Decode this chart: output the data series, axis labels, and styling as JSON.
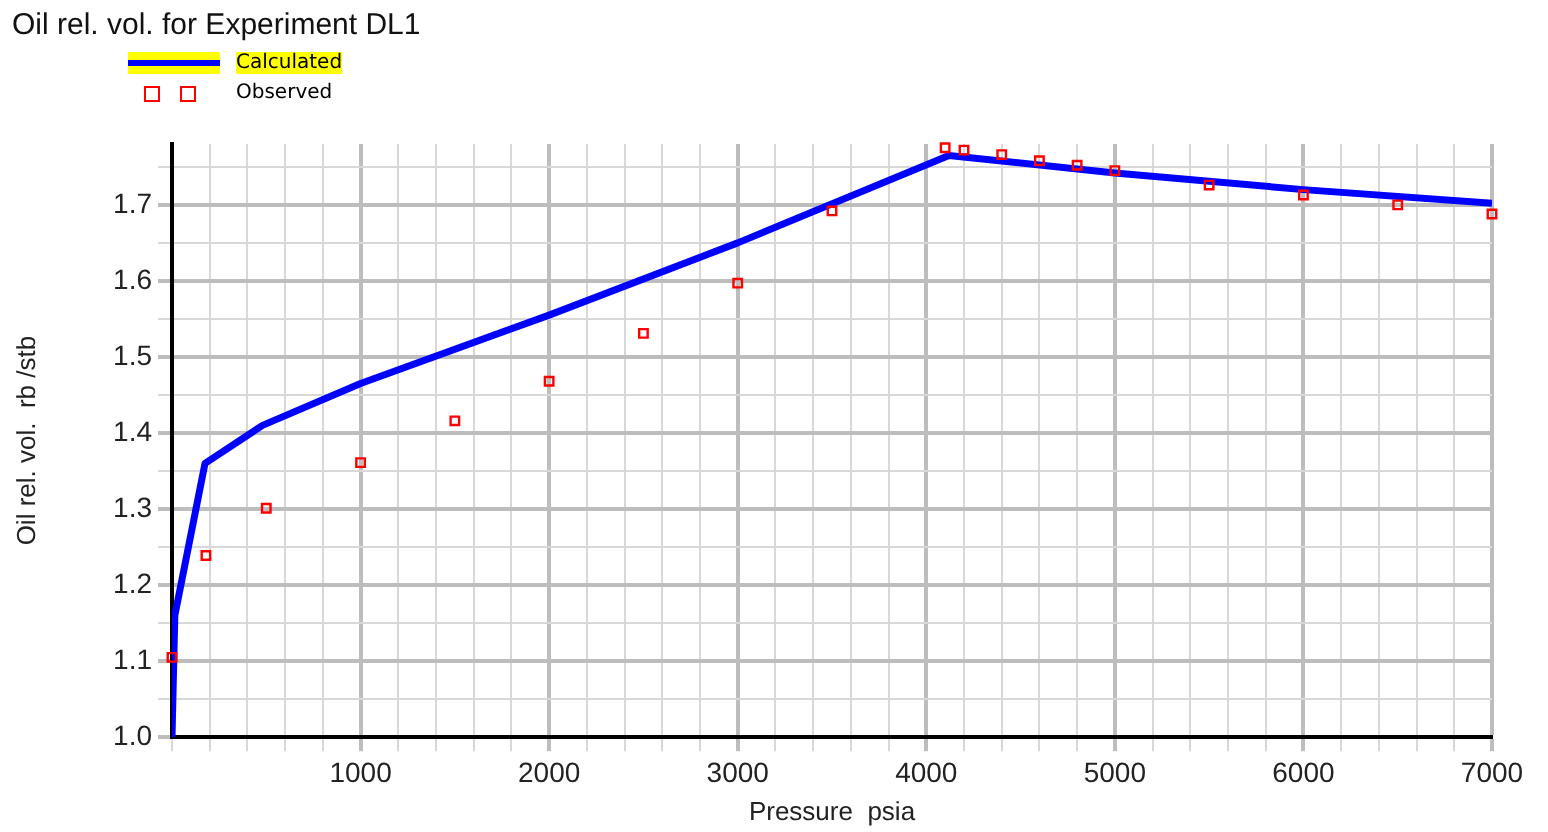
{
  "chart_data": {
    "type": "line",
    "title": "Oil rel. vol. for Experiment DL1",
    "xlabel": "Pressure  psia",
    "ylabel": "Oil rel. vol.  rb /stb",
    "xlim": [
      0,
      7000
    ],
    "ylim": [
      1.0,
      1.78
    ],
    "xticks": [
      {
        "value": 0,
        "label": null
      },
      {
        "value": 200,
        "label": null
      },
      {
        "value": 400,
        "label": null
      },
      {
        "value": 600,
        "label": null
      },
      {
        "value": 800,
        "label": null
      },
      1000,
      {
        "value": 1200,
        "label": null
      },
      {
        "value": 1400,
        "label": null
      },
      {
        "value": 1600,
        "label": null
      },
      {
        "value": 1800,
        "label": null
      },
      2000,
      {
        "value": 2200,
        "label": null
      },
      {
        "value": 2400,
        "label": null
      },
      {
        "value": 2600,
        "label": null
      },
      {
        "value": 2800,
        "label": null
      },
      3000,
      {
        "value": 3200,
        "label": null
      },
      {
        "value": 3400,
        "label": null
      },
      {
        "value": 3600,
        "label": null
      },
      {
        "value": 3800,
        "label": null
      },
      4000,
      {
        "value": 4200,
        "label": null
      },
      {
        "value": 4400,
        "label": null
      },
      {
        "value": 4600,
        "label": null
      },
      {
        "value": 4800,
        "label": null
      },
      5000,
      {
        "value": 5200,
        "label": null
      },
      {
        "value": 5400,
        "label": null
      },
      {
        "value": 5600,
        "label": null
      },
      {
        "value": 5800,
        "label": null
      },
      6000,
      {
        "value": 6200,
        "label": null
      },
      {
        "value": 6400,
        "label": null
      },
      {
        "value": 6600,
        "label": null
      },
      {
        "value": 6800,
        "label": null
      },
      7000
    ],
    "yticks": [
      {
        "value": 1.0,
        "label": "1.0"
      },
      {
        "value": 1.05,
        "label": null
      },
      1.1,
      {
        "value": 1.15,
        "label": null
      },
      1.2,
      {
        "value": 1.25,
        "label": null
      },
      1.3,
      {
        "value": 1.35,
        "label": null
      },
      1.4,
      {
        "value": 1.45,
        "label": null
      },
      1.5,
      {
        "value": 1.55,
        "label": null
      },
      1.6,
      {
        "value": 1.65,
        "label": null
      },
      1.7,
      {
        "value": 1.75,
        "label": null
      }
    ],
    "grid": true,
    "legend": "top left",
    "series": [
      {
        "name": "Calculated",
        "color": "#0000ff",
        "marker": "none",
        "line_style": "solid",
        "x": [
          0,
          15,
          175,
          480,
          1000,
          2000,
          3000,
          4120,
          5000,
          6000,
          7000
        ],
        "values": [
          1.0,
          1.16,
          1.36,
          1.41,
          1.465,
          1.555,
          1.65,
          1.765,
          1.742,
          1.72,
          1.702
        ]
      },
      {
        "name": "Observed",
        "type": "scatter",
        "color": "#ff0000",
        "marker": "square",
        "x": [
          0,
          180,
          500,
          1000,
          1500,
          2000,
          2500,
          3000,
          3500,
          4100,
          4200,
          4400,
          4600,
          4800,
          5000,
          5500,
          6000,
          6500,
          7000
        ],
        "values": [
          1.105,
          1.239,
          1.301,
          1.361,
          1.416,
          1.468,
          1.531,
          1.597,
          1.692,
          1.775,
          1.772,
          1.766,
          1.758,
          1.752,
          1.745,
          1.726,
          1.713,
          1.7,
          1.688
        ]
      }
    ]
  }
}
